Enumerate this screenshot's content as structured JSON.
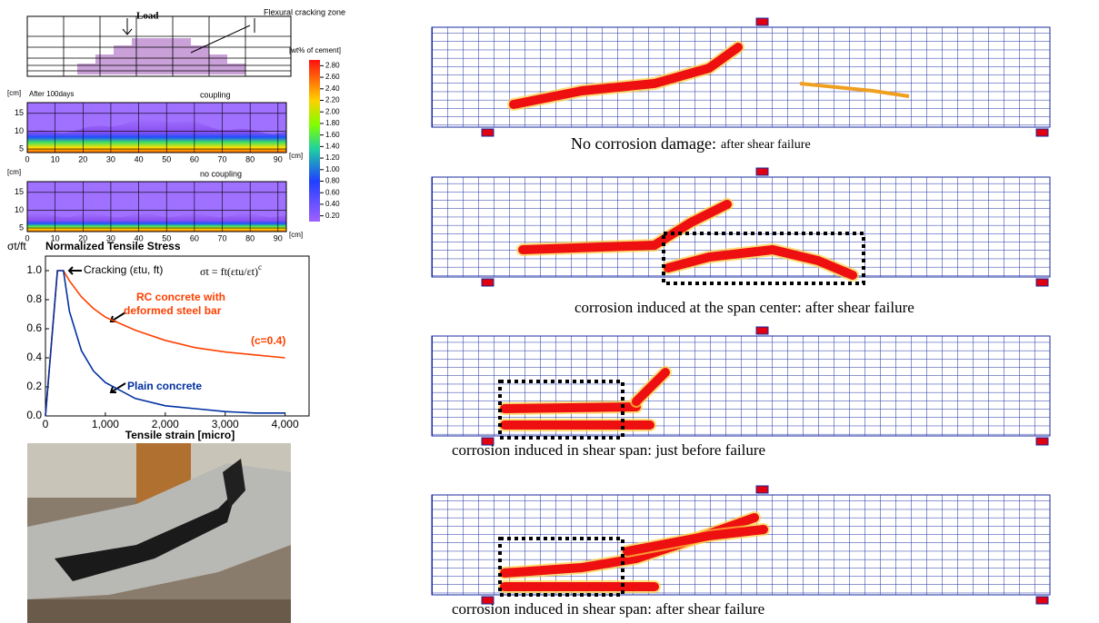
{
  "figure_left": {
    "beam": {
      "load_label": "Load",
      "zone_label": "Flexural cracking zone"
    },
    "colorbar": {
      "unit": "[wt% of cement]",
      "lim": [
        0.1,
        2.9
      ],
      "ticks": [
        {
          "value": 2.8,
          "label": "2.80"
        },
        {
          "value": 2.6,
          "label": "2.60"
        },
        {
          "value": 2.4,
          "label": "2.40"
        },
        {
          "value": 2.2,
          "label": "2.20"
        },
        {
          "value": 2,
          "label": "2.00"
        },
        {
          "value": 1.8,
          "label": "1.80"
        },
        {
          "value": 1.6,
          "label": "1.60"
        },
        {
          "value": 1.4,
          "label": "1.40"
        },
        {
          "value": 1.2,
          "label": "1.20"
        },
        {
          "value": 1,
          "label": "1.00"
        },
        {
          "value": 0.8,
          "label": "0.80"
        },
        {
          "value": 0.6,
          "label": "0.60"
        },
        {
          "value": 0.4,
          "label": "0.40"
        },
        {
          "value": 0.2,
          "label": "0.20"
        }
      ]
    },
    "contour_time": "After 100days",
    "contours": [
      {
        "title": "coupling"
      },
      {
        "title": "no coupling"
      }
    ],
    "contour_unit": "[cm]",
    "contour_xlim": [
      0,
      93
    ],
    "contour_ylim": [
      4,
      18
    ],
    "contour_xticks": [
      0,
      10,
      20,
      30,
      40,
      50,
      60,
      70,
      80,
      90
    ],
    "contour_yticks": [
      5,
      10,
      15
    ]
  },
  "chart_data": {
    "type": "line",
    "title": "Normalized Tensile Stress",
    "y_symbol": "σt/ft",
    "x_label": "Tensile strain [micro]",
    "x": [
      0,
      200,
      300,
      400,
      600,
      800,
      1000,
      1500,
      2000,
      2500,
      3000,
      3500,
      4000
    ],
    "series": [
      {
        "name": "RC concrete with deformed steel bar",
        "color": "#ff4000",
        "values": [
          0,
          1,
          1,
          0.93,
          0.82,
          0.74,
          0.68,
          0.59,
          0.52,
          0.47,
          0.44,
          0.42,
          0.4
        ]
      },
      {
        "name": "Plain concrete",
        "color": "#0030a0",
        "values": [
          0,
          1,
          1,
          0.72,
          0.45,
          0.31,
          0.23,
          0.12,
          0.07,
          0.05,
          0.03,
          0.02,
          0.02
        ]
      }
    ],
    "annotations": {
      "cracking": "Cracking (εtu, ft)",
      "law": "σt = ft(εtu/εt)^c",
      "c_value": "(c=0.4)"
    },
    "xlim": [
      0,
      4400
    ],
    "ylim": [
      0,
      1.1
    ],
    "xticks": [
      0,
      {
        "value": 1000,
        "label": "1,000"
      },
      {
        "value": 2000,
        "label": "2,000"
      },
      {
        "value": 3000,
        "label": "3,000"
      },
      {
        "value": 4000,
        "label": "4,000"
      }
    ],
    "yticks": [
      {
        "value": 0,
        "label": "0.0"
      },
      0.2,
      0.4,
      0.6,
      0.8,
      {
        "value": 1,
        "label": "1.0"
      }
    ]
  },
  "panels": [
    {
      "caption": "No corrosion damage:",
      "caption_detail": "after shear failure"
    },
    {
      "caption": "corrosion induced at the span center: after shear failure"
    },
    {
      "caption": "corrosion induced in shear span: just before failure"
    },
    {
      "caption": "corrosion induced in shear span: after shear failure"
    }
  ]
}
